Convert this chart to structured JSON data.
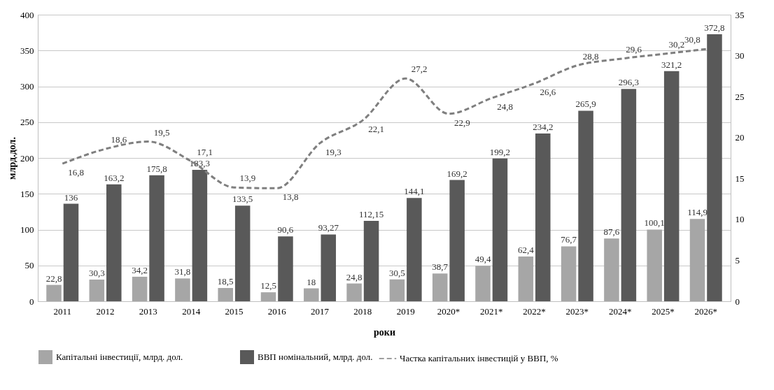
{
  "chart_data": {
    "type": "bar",
    "xlabel": "роки",
    "ylabel": "млрд.дол.",
    "categories": [
      "2011",
      "2012",
      "2013",
      "2014",
      "2015",
      "2016",
      "2017",
      "2018",
      "2019",
      "2020*",
      "2021*",
      "2022*",
      "2023*",
      "2024*",
      "2025*",
      "2026*"
    ],
    "series": [
      {
        "name": "Капітальні інвестиції, млрд. дол.",
        "color": "#a6a6a6",
        "values": [
          22.8,
          30.3,
          34.2,
          31.8,
          18.5,
          12.5,
          18,
          24.8,
          30.5,
          38.7,
          49.4,
          62.4,
          76.7,
          87.6,
          100.1,
          114.9
        ],
        "value_labels": [
          "22,8",
          "30,3",
          "34,2",
          "31,8",
          "18,5",
          "12,5",
          "18",
          "24,8",
          "30,5",
          "38,7",
          "49,4",
          "62,4",
          "76,7",
          "87,6",
          "100,1",
          "114,9"
        ]
      },
      {
        "name": "ВВП номінальний, млрд. дол.",
        "color": "#595959",
        "values": [
          136,
          163.2,
          175.8,
          183.3,
          133.5,
          90.6,
          93.27,
          112.15,
          144.1,
          169.2,
          199.2,
          234.2,
          265.9,
          296.3,
          321.2,
          372.8
        ],
        "value_labels": [
          "136",
          "163,2",
          "175,8",
          "183,3",
          "133,5",
          "90,6",
          "93,27",
          "112,15",
          "144,1",
          "169,2",
          "199,2",
          "234,2",
          "265,9",
          "296,3",
          "321,2",
          "372,8"
        ]
      },
      {
        "name": "Частка капітальних інвестицій у ВВП, %",
        "type": "line",
        "axis": "y2",
        "line_style": "dashed",
        "color": "#7f7f7f",
        "values": [
          16.8,
          18.6,
          19.5,
          17.1,
          13.9,
          13.8,
          19.3,
          22.1,
          27.2,
          22.9,
          24.8,
          26.6,
          28.8,
          29.6,
          30.2,
          30.8
        ],
        "value_labels": [
          "16,8",
          "18,6",
          "19,5",
          "17,1",
          "13,9",
          "13,8",
          "19,3",
          "22,1",
          "27,2",
          "22,9",
          "24,8",
          "26,6",
          "28,8",
          "29,6",
          "30,2",
          "30,8"
        ]
      }
    ],
    "ylim": [
      0,
      400
    ],
    "yticks": [
      0,
      50,
      100,
      150,
      200,
      250,
      300,
      350,
      400
    ],
    "y2lim": [
      0,
      35
    ],
    "y2ticks": [
      0,
      5,
      10,
      15,
      20,
      25,
      30,
      35
    ],
    "grid": "y",
    "legend": "bottom"
  }
}
